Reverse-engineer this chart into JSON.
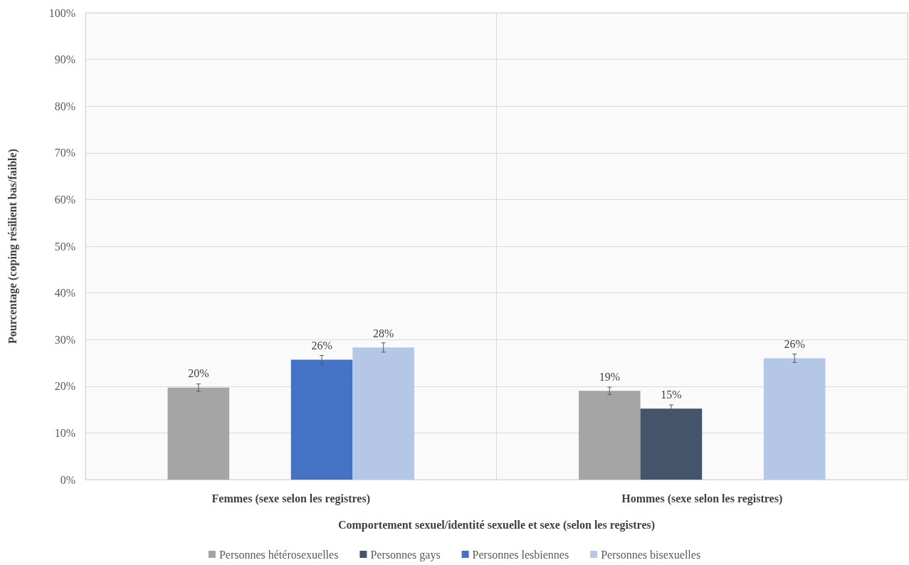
{
  "chart_data": {
    "type": "bar",
    "xlabel": "Comportement sexuel/identité sexuelle et sexe (selon les registres)",
    "ylabel": "Pourcentage (coping résilient bas/faible)",
    "categories": [
      "Femmes (sexe selon les registres)",
      "Hommes (sexe selon les registres)"
    ],
    "series": [
      {
        "name": "Personnes hétérosexuelles",
        "color": "#a5a5a5",
        "values": [
          19.7,
          19.0
        ],
        "errors": [
          0.8,
          0.8
        ],
        "value_labels": [
          "20%",
          "19%"
        ]
      },
      {
        "name": "Personnes gays",
        "color": "#44546a",
        "values": [
          null,
          15.2
        ],
        "errors": [
          null,
          0.8
        ],
        "value_labels": [
          null,
          "15%"
        ]
      },
      {
        "name": "Personnes lesbiennes",
        "color": "#4472c4",
        "values": [
          25.7,
          null
        ],
        "errors": [
          0.9,
          null
        ],
        "value_labels": [
          "26%",
          null
        ]
      },
      {
        "name": "Personnes bisexuelles",
        "color": "#b4c7e7",
        "values": [
          28.3,
          26.0
        ],
        "errors": [
          1.0,
          0.9
        ],
        "value_labels": [
          "28%",
          "26%"
        ]
      }
    ],
    "ylim": [
      0,
      100
    ],
    "yticks": [
      {
        "value": 0,
        "label": "0%"
      },
      {
        "value": 10,
        "label": "10%"
      },
      {
        "value": 20,
        "label": "20%"
      },
      {
        "value": 30,
        "label": "30%"
      },
      {
        "value": 40,
        "label": "40%"
      },
      {
        "value": 50,
        "label": "50%"
      },
      {
        "value": 60,
        "label": "60%"
      },
      {
        "value": 70,
        "label": "70%"
      },
      {
        "value": 80,
        "label": "80%"
      },
      {
        "value": 90,
        "label": "90%"
      },
      {
        "value": 100,
        "label": "100%"
      }
    ],
    "grid": "y",
    "legend": "bottom"
  }
}
